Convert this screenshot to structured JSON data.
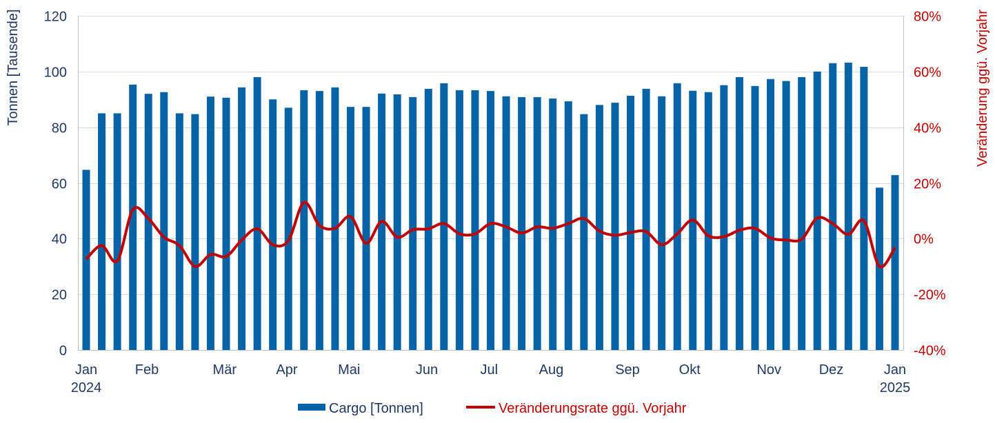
{
  "chart_data": {
    "type": "bar",
    "title": "",
    "xlabel": "",
    "ylabel": "Tonnen [Tausende]",
    "y2label": "Veränderung ggü. Vorjahr",
    "ylim": [
      0,
      120
    ],
    "y2lim": [
      -40,
      80
    ],
    "yticks": [
      "0",
      "20",
      "40",
      "60",
      "80",
      "100",
      "120"
    ],
    "y2ticks": [
      "-40%",
      "-20%",
      "0%",
      "20%",
      "40%",
      "60%",
      "80%"
    ],
    "grid": true,
    "legend_position": "bottom",
    "x_ticks": [
      {
        "week": 1,
        "label": "Jan",
        "sub": "2024"
      },
      {
        "week": 4.9,
        "label": "Feb"
      },
      {
        "week": 9.9,
        "label": "Mär"
      },
      {
        "week": 13.9,
        "label": "Apr"
      },
      {
        "week": 17.9,
        "label": "Mai"
      },
      {
        "week": 22.9,
        "label": "Jun"
      },
      {
        "week": 26.9,
        "label": "Jul"
      },
      {
        "week": 30.9,
        "label": "Aug"
      },
      {
        "week": 35.8,
        "label": "Sep"
      },
      {
        "week": 39.8,
        "label": "Okt"
      },
      {
        "week": 44.9,
        "label": "Nov"
      },
      {
        "week": 48.9,
        "label": "Dez"
      },
      {
        "week": 53,
        "label": "Jan",
        "sub": "2025"
      }
    ],
    "series": [
      {
        "name": "Cargo [Tonnen]",
        "type": "bar",
        "axis": "left",
        "color": "#0563a6",
        "values": [
          64.7,
          85,
          85,
          95.3,
          92,
          92.6,
          85,
          84.7,
          91,
          90.6,
          94.3,
          98,
          90,
          87,
          93.3,
          93,
          94.3,
          87.3,
          87.3,
          92.1,
          91.8,
          90.8,
          93.8,
          95.8,
          93.3,
          93.3,
          93,
          91.1,
          90.8,
          90.8,
          90.3,
          89.3,
          84.7,
          88,
          88.8,
          91.3,
          93.8,
          91.1,
          95.8,
          93.1,
          92.6,
          95.1,
          98,
          94.8,
          97.3,
          96.6,
          98,
          100,
          103,
          103.2,
          101.7,
          58.3,
          62.8
        ]
      },
      {
        "name": "Veränderungsrate ggü. Vorjahr",
        "type": "line",
        "axis": "right",
        "color": "#c00000",
        "values": [
          -7.4,
          -2.5,
          -8,
          10.4,
          7.2,
          0.5,
          -2.5,
          -10,
          -5.7,
          -6.4,
          -0.5,
          3.5,
          -2.2,
          -0.7,
          13,
          4.7,
          3.7,
          7.9,
          -1.7,
          6.2,
          0.5,
          3.2,
          3.5,
          5.4,
          1.7,
          1.7,
          5.4,
          4.2,
          2,
          4.2,
          3.7,
          5.4,
          7.2,
          2.7,
          1.2,
          2.2,
          2.5,
          -2.2,
          1.7,
          6.7,
          1,
          0.7,
          3,
          3.7,
          0.2,
          -0.5,
          -0.2,
          7.4,
          5.4,
          1.5,
          6.4,
          -10,
          -3.2
        ]
      }
    ]
  },
  "colors": {
    "bar": "#0563a6",
    "line": "#c00000",
    "left_axis_text": "#1f3864",
    "right_axis_text": "#c00000"
  }
}
